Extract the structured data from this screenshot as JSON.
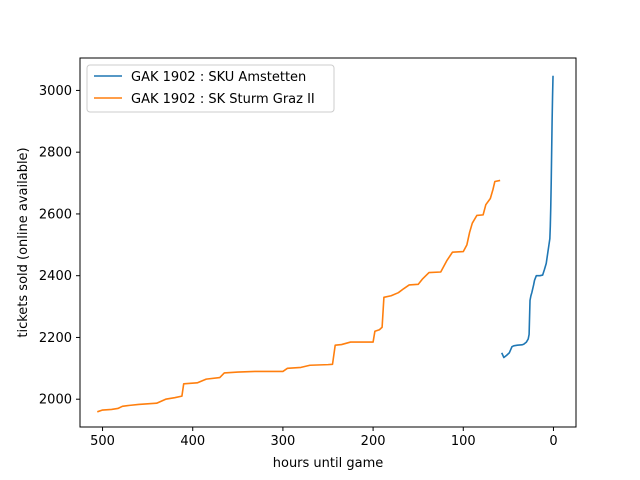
{
  "chart_data": {
    "type": "line",
    "title": "",
    "xlabel": "hours until game",
    "ylabel": "tickets sold (online available)",
    "xlim": [
      525,
      -25
    ],
    "ylim": [
      1910,
      3105
    ],
    "xticks": [
      500,
      400,
      300,
      200,
      100,
      0
    ],
    "yticks": [
      2000,
      2200,
      2400,
      2600,
      2800,
      3000
    ],
    "grid": false,
    "legend": "top-left",
    "series": [
      {
        "name": "GAK 1902 : SKU Amstetten",
        "color": "#1f77b4",
        "points": [
          [
            57,
            2148
          ],
          [
            55,
            2135
          ],
          [
            52,
            2142
          ],
          [
            49,
            2150
          ],
          [
            46,
            2170
          ],
          [
            44,
            2173
          ],
          [
            40,
            2175
          ],
          [
            35,
            2176
          ],
          [
            33,
            2178
          ],
          [
            30,
            2185
          ],
          [
            28,
            2195
          ],
          [
            27,
            2210
          ],
          [
            26,
            2320
          ],
          [
            25,
            2335
          ],
          [
            24,
            2345
          ],
          [
            22,
            2370
          ],
          [
            21,
            2385
          ],
          [
            19,
            2400
          ],
          [
            15,
            2400
          ],
          [
            12,
            2402
          ],
          [
            10,
            2420
          ],
          [
            8,
            2440
          ],
          [
            7,
            2460
          ],
          [
            6,
            2480
          ],
          [
            5,
            2500
          ],
          [
            4,
            2520
          ],
          [
            3.5,
            2560
          ],
          [
            3,
            2620
          ],
          [
            2.5,
            2700
          ],
          [
            2,
            2800
          ],
          [
            1.5,
            2900
          ],
          [
            1,
            2980
          ],
          [
            0.5,
            3045
          ]
        ]
      },
      {
        "name": "GAK 1902 : SK Sturm Graz II",
        "color": "#ff7f0e",
        "points": [
          [
            505,
            1960
          ],
          [
            500,
            1965
          ],
          [
            490,
            1967
          ],
          [
            483,
            1970
          ],
          [
            478,
            1977
          ],
          [
            470,
            1980
          ],
          [
            460,
            1983
          ],
          [
            450,
            1985
          ],
          [
            440,
            1987
          ],
          [
            430,
            2000
          ],
          [
            420,
            2005
          ],
          [
            412,
            2010
          ],
          [
            410,
            2050
          ],
          [
            395,
            2053
          ],
          [
            385,
            2065
          ],
          [
            370,
            2070
          ],
          [
            365,
            2085
          ],
          [
            350,
            2088
          ],
          [
            330,
            2090
          ],
          [
            300,
            2090
          ],
          [
            295,
            2100
          ],
          [
            280,
            2103
          ],
          [
            270,
            2110
          ],
          [
            250,
            2112
          ],
          [
            245,
            2113
          ],
          [
            242,
            2175
          ],
          [
            235,
            2177
          ],
          [
            225,
            2185
          ],
          [
            200,
            2185
          ],
          [
            198,
            2220
          ],
          [
            193,
            2225
          ],
          [
            190,
            2233
          ],
          [
            188,
            2330
          ],
          [
            180,
            2335
          ],
          [
            172,
            2345
          ],
          [
            166,
            2358
          ],
          [
            160,
            2370
          ],
          [
            150,
            2372
          ],
          [
            145,
            2390
          ],
          [
            138,
            2410
          ],
          [
            125,
            2412
          ],
          [
            118,
            2450
          ],
          [
            112,
            2476
          ],
          [
            100,
            2478
          ],
          [
            96,
            2500
          ],
          [
            93,
            2540
          ],
          [
            90,
            2570
          ],
          [
            85,
            2595
          ],
          [
            78,
            2597
          ],
          [
            75,
            2630
          ],
          [
            70,
            2650
          ],
          [
            67,
            2680
          ],
          [
            65,
            2705
          ],
          [
            60,
            2708
          ]
        ]
      }
    ]
  }
}
